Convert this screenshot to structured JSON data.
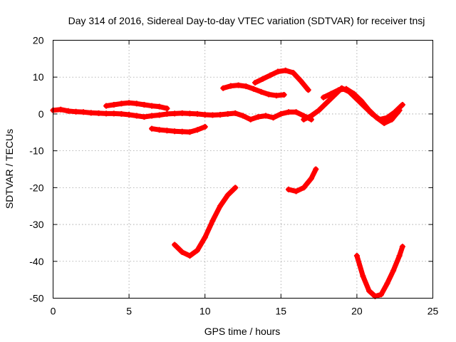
{
  "chart_data": {
    "type": "scatter",
    "title": "Day 314 of 2016, Sidereal Day-to-day VTEC variation (SDTVAR) for receiver tnsj",
    "xlabel": "GPS time / hours",
    "ylabel": "SDTVAR / TECUs",
    "xlim": [
      0,
      25
    ],
    "ylim": [
      -50,
      20
    ],
    "xticks": [
      "0",
      "5",
      "10",
      "15",
      "20",
      "25"
    ],
    "yticks": [
      "-50",
      "-40",
      "-30",
      "-20",
      "-10",
      "0",
      "10",
      "20"
    ],
    "grid": true,
    "marker_color": "#ff0000",
    "series": [
      {
        "x": [
          0.0,
          0.5,
          1.0,
          1.5,
          2.0,
          2.5,
          3.0,
          3.5,
          4.0,
          4.5,
          5.0,
          5.5,
          6.0,
          6.5,
          7.0,
          7.5,
          8.0,
          8.5,
          9.0,
          9.5,
          10.0,
          10.5,
          11.0,
          11.5,
          12.0,
          12.5,
          13.0,
          13.5,
          14.0,
          14.5,
          15.0,
          15.5,
          16.0,
          16.5,
          17.0
        ],
        "y": [
          1.0,
          1.2,
          0.8,
          0.6,
          0.5,
          0.3,
          0.2,
          0.1,
          0.1,
          0.0,
          -0.2,
          -0.5,
          -0.8,
          -0.5,
          -0.3,
          0.0,
          0.1,
          0.2,
          0.1,
          0.0,
          -0.2,
          -0.3,
          -0.2,
          0.0,
          0.2,
          -0.5,
          -1.5,
          -0.8,
          -0.5,
          -1.0,
          0.0,
          0.5,
          0.5,
          -0.5,
          -1.5
        ]
      },
      {
        "x": [
          3.5,
          4.0,
          4.5,
          5.0,
          5.5,
          6.0,
          6.5,
          7.0,
          7.5
        ],
        "y": [
          2.2,
          2.5,
          2.8,
          3.0,
          2.8,
          2.5,
          2.2,
          2.0,
          1.5
        ]
      },
      {
        "x": [
          6.5,
          7.0,
          7.5,
          8.0,
          8.5,
          9.0,
          9.5,
          10.0
        ],
        "y": [
          -4.0,
          -4.3,
          -4.5,
          -4.7,
          -4.8,
          -4.9,
          -4.3,
          -3.5
        ]
      },
      {
        "x": [
          11.2,
          11.7,
          12.2,
          12.7,
          13.2,
          13.7,
          14.2,
          14.7,
          15.2
        ],
        "y": [
          7.0,
          7.6,
          7.8,
          7.5,
          6.8,
          6.0,
          5.3,
          5.0,
          5.2
        ]
      },
      {
        "x": [
          13.3,
          13.8,
          14.3,
          14.8,
          15.3,
          15.8,
          16.3,
          16.8
        ],
        "y": [
          8.5,
          9.5,
          10.5,
          11.5,
          11.8,
          11.2,
          9.0,
          6.5
        ]
      },
      {
        "x": [
          16.5,
          17.0,
          17.5,
          18.0,
          18.5,
          19.0,
          19.5,
          20.0,
          20.5,
          21.0,
          21.5,
          22.0,
          22.5,
          23.0
        ],
        "y": [
          -1.5,
          -0.5,
          1.0,
          3.0,
          5.0,
          7.0,
          6.0,
          4.0,
          2.0,
          0.0,
          -1.5,
          -1.0,
          0.5,
          2.5
        ]
      },
      {
        "x": [
          17.8,
          18.3,
          18.8,
          19.3,
          19.8,
          20.3,
          20.8,
          21.3,
          21.8,
          22.3,
          22.8
        ],
        "y": [
          4.5,
          5.5,
          6.5,
          6.8,
          5.5,
          3.5,
          1.0,
          -1.0,
          -2.5,
          -1.5,
          1.0
        ]
      },
      {
        "x": [
          8.0,
          8.5,
          9.0,
          9.5,
          10.0,
          10.5,
          11.0,
          11.5,
          12.0
        ],
        "y": [
          -35.5,
          -37.5,
          -38.5,
          -37.0,
          -33.5,
          -29.0,
          -25.0,
          -22.0,
          -20.0
        ]
      },
      {
        "x": [
          15.5,
          16.0,
          16.5,
          17.0,
          17.3
        ],
        "y": [
          -20.5,
          -21.0,
          -20.0,
          -17.5,
          -15.0
        ]
      },
      {
        "x": [
          20.0,
          20.4,
          20.8,
          21.2,
          21.6,
          22.0,
          22.4,
          22.8,
          23.0
        ],
        "y": [
          -38.5,
          -44.0,
          -48.0,
          -49.5,
          -49.0,
          -46.0,
          -42.5,
          -38.5,
          -36.0
        ]
      }
    ]
  }
}
